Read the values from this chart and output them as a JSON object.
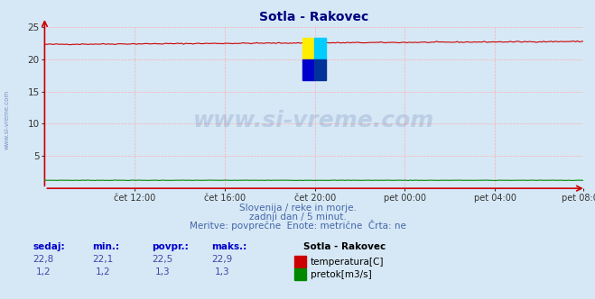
{
  "title": "Sotla - Rakovec",
  "title_color": "#000080",
  "background_color": "#d6e8f5",
  "grid_color": "#ffaaaa",
  "temp_color": "#cc0000",
  "flow_color": "#008800",
  "axis_color": "#cc0000",
  "ylim_min": 0,
  "ylim_max": 25,
  "yticks": [
    5,
    10,
    15,
    20,
    25
  ],
  "n_points": 288,
  "xtick_labels": [
    "čet 12:00",
    "čet 16:00",
    "čet 20:00",
    "pet 00:00",
    "pet 04:00",
    "pet 08:00"
  ],
  "subtitle_color": "#4466aa",
  "subtitle_line1": "Slovenija / reke in morje.",
  "subtitle_line2": "zadnji dan / 5 minut.",
  "subtitle_line3": "Meritve: povprečne  Enote: metrične  Črta: ne",
  "watermark_text": "www.si-vreme.com",
  "watermark_color": "#1a3a8a",
  "watermark_alpha": 0.15,
  "left_label": "www.si-vreme.com",
  "left_label_color": "#4466aa",
  "legend_title": "Sotla - Rakovec",
  "legend_label1": "temperatura[C]",
  "legend_label2": "pretok[m3/s]",
  "table_headers": [
    "sedaj:",
    "min.:",
    "povpr.:",
    "maks.:"
  ],
  "table_row1": [
    "22,8",
    "22,1",
    "22,5",
    "22,9"
  ],
  "table_row2": [
    "1,2",
    "1,2",
    "1,3",
    "1,3"
  ],
  "header_color": "#0000cc",
  "value_color": "#4444aa",
  "logo_colors": [
    "#ffee00",
    "#00ccff",
    "#0000cc",
    "#003399"
  ]
}
